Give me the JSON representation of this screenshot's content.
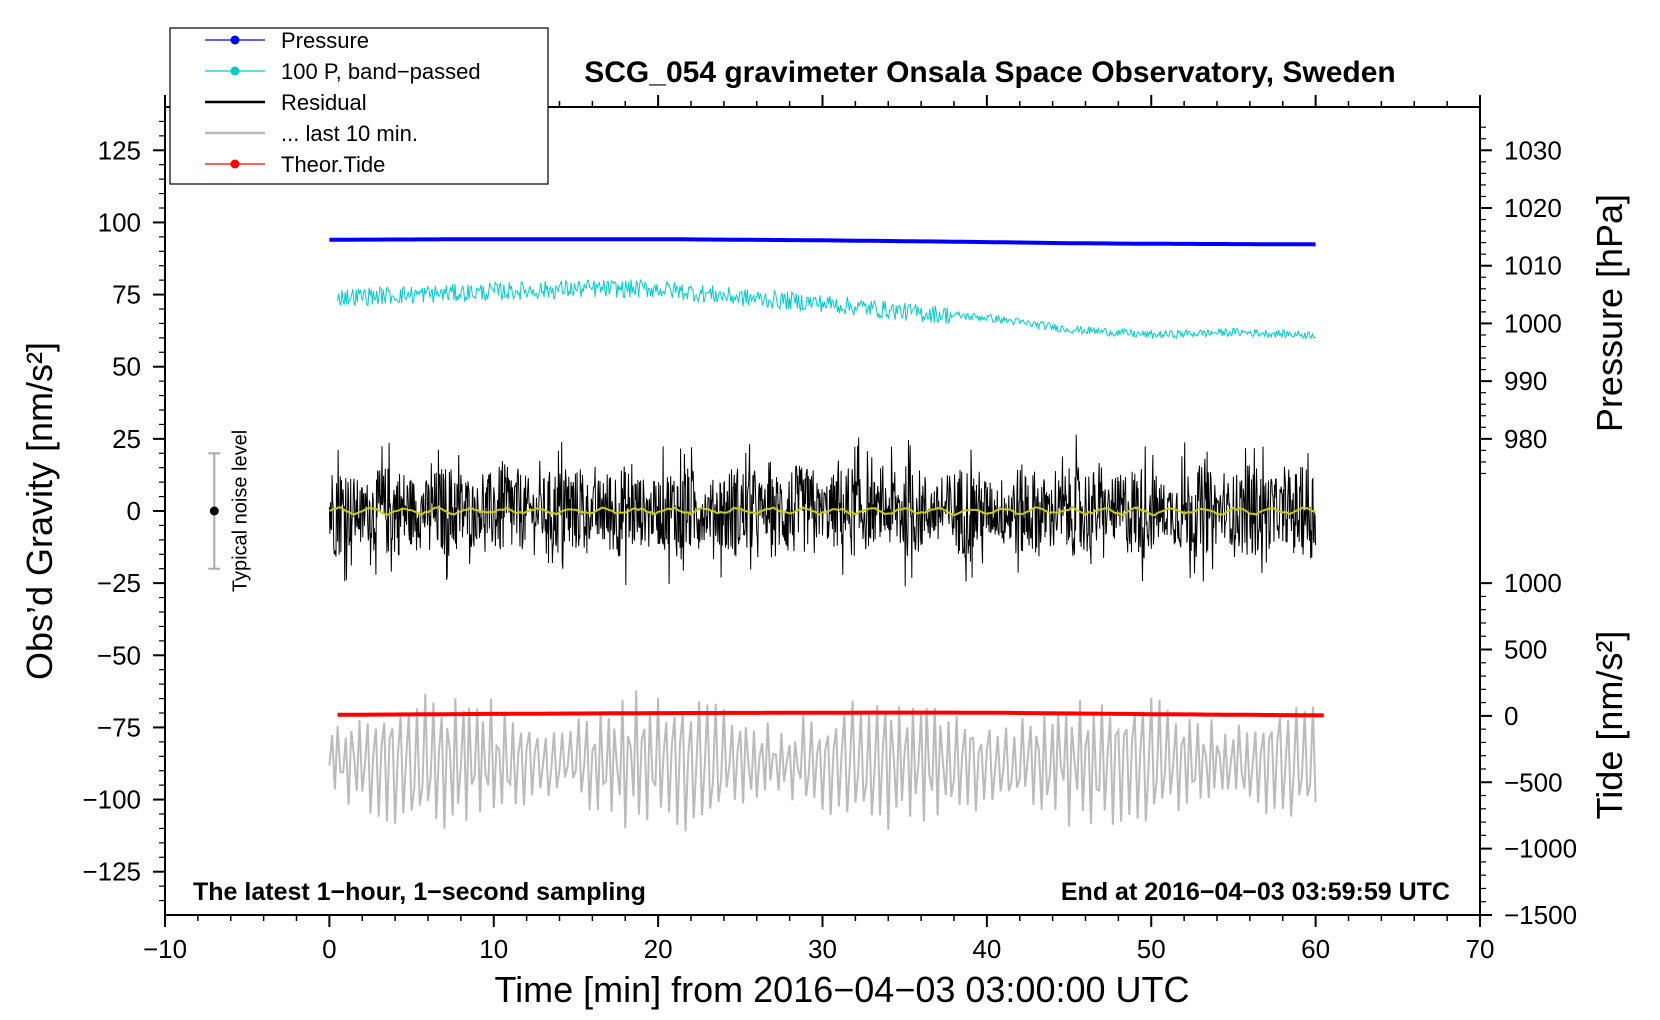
{
  "chart_data": {
    "type": "line",
    "title": "SCG_054 gravimeter Onsala Space Observatory, Sweden",
    "xlabel": "Time [min] from 2016−04−03 03:00:00 UTC",
    "ylabel_left": "Obs’d Gravity [nm/s²]",
    "ylabel_right_pressure": "Pressure [hPa]",
    "ylabel_right_tide": "Tide [nm/s²]",
    "xlim": [
      -10,
      70
    ],
    "ylim": [
      -140,
      140
    ],
    "x_ticks": [
      -10,
      0,
      10,
      20,
      30,
      40,
      50,
      60,
      70
    ],
    "x_tick_labels": [
      "−10",
      "0",
      "10",
      "20",
      "30",
      "40",
      "50",
      "60",
      "70"
    ],
    "y_ticks": [
      125,
      100,
      75,
      50,
      25,
      0,
      -25,
      -50,
      -75,
      -100,
      -125
    ],
    "y_tick_labels": [
      "125",
      "100",
      "75",
      "50",
      "25",
      "0",
      "−25",
      "−50",
      "−75",
      "−100",
      "−125"
    ],
    "pressure_axis": {
      "ticks": [
        1030,
        1020,
        1010,
        1000,
        990,
        980
      ],
      "tick_labels": [
        "1030",
        "1020",
        "1010",
        "1000",
        "990",
        "980"
      ],
      "range_hpa": [
        980,
        1030
      ],
      "maps_to_gravity": [
        25,
        125
      ]
    },
    "tide_axis": {
      "ticks": [
        1000,
        500,
        0,
        -500,
        -1000,
        -1500
      ],
      "tick_labels": [
        "1000",
        "500",
        "0",
        "−500",
        "−1000",
        "−1500"
      ],
      "range": [
        -1500,
        1000
      ],
      "maps_to_gravity": [
        -140,
        -25
      ]
    },
    "legend": [
      {
        "label": "Pressure",
        "color": "#0000ff",
        "marker": true
      },
      {
        "label": "100 P, band−passed",
        "color": "#00cccc",
        "marker": true
      },
      {
        "label": "Residual",
        "color": "#000000",
        "marker": false
      },
      {
        "label": "... last 10 min.",
        "color": "#bbbbbb",
        "marker": false
      },
      {
        "label": "Theor.Tide",
        "color": "#ff0000",
        "marker": true
      }
    ],
    "legend_position": "top-left",
    "series": [
      {
        "name": "Pressure",
        "unit": "hPa",
        "color": "#0000ff",
        "x": [
          0,
          10,
          20,
          30,
          40,
          45,
          50,
          60
        ],
        "values": [
          1014.5,
          1014.6,
          1014.6,
          1014.4,
          1014.1,
          1013.9,
          1013.8,
          1013.7
        ]
      },
      {
        "name": "100 P, band−passed",
        "unit": "nm/s²",
        "color": "#00cccc",
        "x": [
          0,
          5,
          10,
          15,
          20,
          25,
          30,
          35,
          40,
          45,
          50,
          55,
          60
        ],
        "values": [
          74,
          75,
          76,
          77,
          77,
          74,
          72,
          69,
          67,
          63,
          61,
          62,
          61
        ]
      },
      {
        "name": "Residual",
        "unit": "nm/s²",
        "color": "#000000",
        "x_range": [
          0,
          60
        ],
        "mean": 0,
        "amplitude": 27
      },
      {
        "name": "Residual smoothed",
        "unit": "nm/s²",
        "color": "#cccc00",
        "x_range": [
          0,
          60
        ],
        "mean": 0,
        "amplitude": 1.5
      },
      {
        "name": "... last 10 min.",
        "unit": "nm/s²",
        "color": "#bbbbbb",
        "x_range": [
          0,
          60
        ],
        "mean": -87,
        "amplitude": 22
      },
      {
        "name": "Theor.Tide",
        "unit": "nm/s²",
        "color": "#ff0000",
        "x": [
          0.5,
          10,
          20,
          30,
          36,
          40,
          50,
          60.5
        ],
        "values": [
          8,
          15,
          21,
          24,
          25,
          24,
          13,
          4
        ]
      }
    ],
    "noise_level": {
      "label": "Typical noise level",
      "x": -7,
      "center": 0,
      "low": -20,
      "high": 20
    },
    "annotation_left": "The latest 1−hour, 1−second sampling",
    "annotation_right": "End at 2016−04−03 03:59:59 UTC"
  }
}
